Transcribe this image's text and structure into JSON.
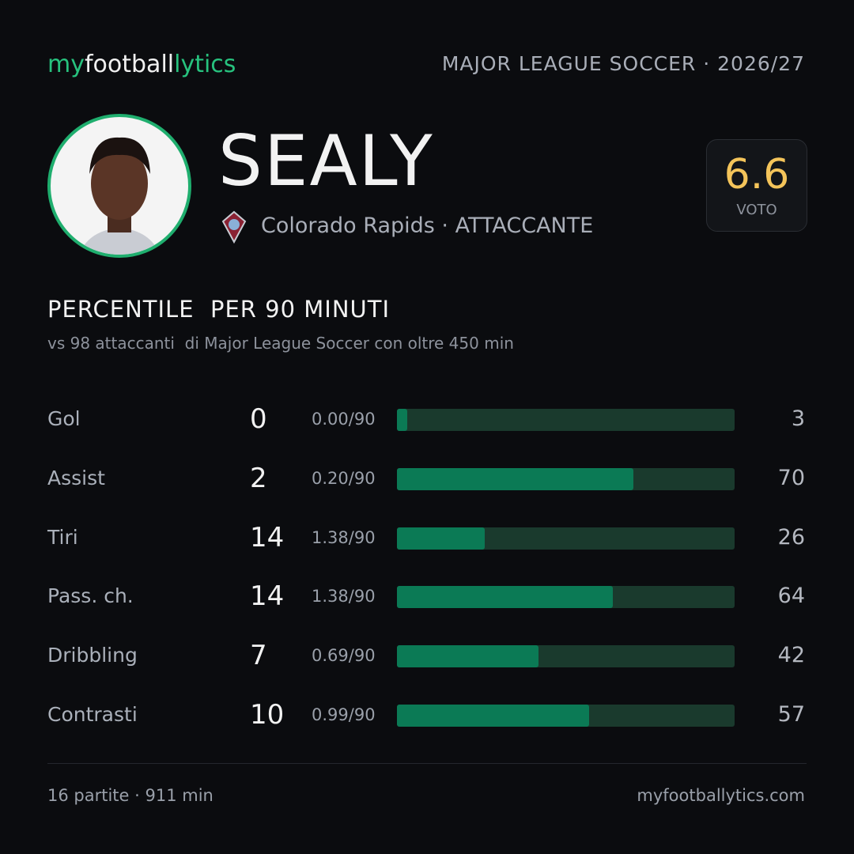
{
  "header": {
    "brand": [
      "my",
      "football",
      "lytics"
    ],
    "league": "MAJOR LEAGUE SOCCER · 2026/27"
  },
  "player": {
    "name": "SEALY",
    "team_role": "Colorado Rapids · ATTACCANTE",
    "rating": {
      "value": 6.6,
      "label": "VOTO"
    }
  },
  "section": {
    "title": "PERCENTILE  PER 90 MINUTI",
    "subtitle": "vs 98 attaccanti  di Major League Soccer con oltre 450 min"
  },
  "stats": {
    "xlim": [
      0,
      100
    ],
    "rows": [
      {
        "label": "Gol",
        "total": 0,
        "per90": "0.00/90",
        "percentile": 3
      },
      {
        "label": "Assist",
        "total": 2,
        "per90": "0.20/90",
        "percentile": 70
      },
      {
        "label": "Tiri",
        "total": 14,
        "per90": "1.38/90",
        "percentile": 26
      },
      {
        "label": "Pass. ch.",
        "total": 14,
        "per90": "1.38/90",
        "percentile": 64
      },
      {
        "label": "Dribbling",
        "total": 7,
        "per90": "0.69/90",
        "percentile": 42
      },
      {
        "label": "Contrasti",
        "total": 10,
        "per90": "0.99/90",
        "percentile": 57
      }
    ]
  },
  "footer": {
    "left": "16 partite · 911 min",
    "right": "myfootballytics.com"
  }
}
